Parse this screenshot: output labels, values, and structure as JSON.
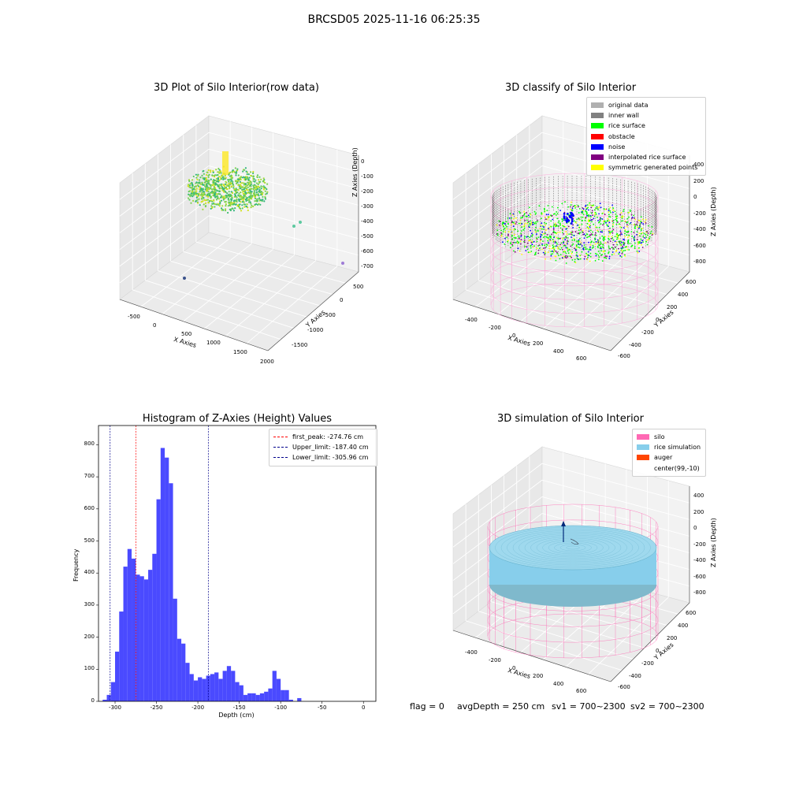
{
  "suptitle": "BRCSD05 2025-11-16 06:25:35",
  "footer": {
    "flag": "flag = 0",
    "avg_depth": "avgDepth = 250 cm",
    "sv1": "sv1 = 700~2300",
    "sv2": "sv2 = 700~2300"
  },
  "panels": {
    "raw": {
      "title": "3D Plot of Silo Interior(row data)",
      "xlabel": "X Axies",
      "ylabel": "Y Axies",
      "zlabel": "Z Axies (Depth)",
      "xticks": [
        "-500",
        "0",
        "500",
        "1000",
        "1500",
        "2000"
      ],
      "yticks": [
        "500",
        "0",
        "-500",
        "-1000",
        "-1500"
      ],
      "zticks": [
        "0",
        "-100",
        "-200",
        "-300",
        "-400",
        "-500",
        "-600",
        "-700"
      ]
    },
    "classify": {
      "title": "3D classify of Silo Interior",
      "xlabel": "X Axies",
      "ylabel": "Y Axies",
      "zlabel": "Z Axies (Depth)",
      "xticks": [
        "-400",
        "-200",
        "0",
        "200",
        "400",
        "600"
      ],
      "yticks": [
        "600",
        "400",
        "200",
        "0",
        "-200",
        "-400",
        "-600"
      ],
      "zticks": [
        "400",
        "200",
        "0",
        "-200",
        "-400",
        "-600",
        "-800"
      ],
      "legend": [
        {
          "label": "original data",
          "color": "#b0b0b0"
        },
        {
          "label": "inner wall",
          "color": "#808080"
        },
        {
          "label": "rice surface",
          "color": "#00ff00"
        },
        {
          "label": "obstacle",
          "color": "#ff0000"
        },
        {
          "label": "noise",
          "color": "#0000ff"
        },
        {
          "label": "interpolated rice surface",
          "color": "#800080"
        },
        {
          "label": "symmetric generated points",
          "color": "#ffff00"
        }
      ]
    },
    "simulation": {
      "title": "3D simulation of Silo Interior",
      "xlabel": "X Axies",
      "ylabel": "Y Axies",
      "zlabel": "Z Axies (Depth)",
      "xticks": [
        "-400",
        "-200",
        "0",
        "200",
        "400",
        "600"
      ],
      "yticks": [
        "600",
        "400",
        "200",
        "0",
        "-200",
        "-400",
        "-600"
      ],
      "zticks": [
        "400",
        "200",
        "0",
        "-200",
        "-400",
        "-600",
        "-800"
      ],
      "legend": [
        {
          "label": "silo",
          "color": "#ff69b4"
        },
        {
          "label": "rice simulation",
          "color": "#87ceeb"
        },
        {
          "label": "auger",
          "color": "#ff4500"
        },
        {
          "label": "center(99,-10)",
          "color": "#ffffff"
        }
      ]
    }
  },
  "chart_data": {
    "type": "bar",
    "title": "Histogram of Z-Axies (Height) Values",
    "xlabel": "Depth (cm)",
    "ylabel": "Frequency",
    "xlim": [
      -320,
      15
    ],
    "ylim": [
      0,
      860
    ],
    "xticks": [
      -300,
      -250,
      -200,
      -150,
      -100,
      -50,
      0
    ],
    "yticks": [
      0,
      100,
      200,
      300,
      400,
      500,
      600,
      700,
      800
    ],
    "bin_width": 5,
    "bin_starts": [
      -315,
      -310,
      -305,
      -300,
      -295,
      -290,
      -285,
      -280,
      -275,
      -270,
      -265,
      -260,
      -255,
      -250,
      -245,
      -240,
      -235,
      -230,
      -225,
      -220,
      -215,
      -210,
      -205,
      -200,
      -195,
      -190,
      -185,
      -180,
      -175,
      -170,
      -165,
      -160,
      -155,
      -150,
      -145,
      -140,
      -135,
      -130,
      -125,
      -120,
      -115,
      -110,
      -105,
      -100,
      -95,
      -90,
      -85,
      -80,
      -75,
      -70,
      -65,
      -60,
      -55,
      -50,
      -45,
      -40,
      -35,
      -30,
      -25,
      -20,
      -15,
      -10,
      -5,
      0
    ],
    "counts": [
      5,
      20,
      60,
      155,
      280,
      420,
      475,
      445,
      395,
      390,
      380,
      410,
      460,
      630,
      790,
      760,
      680,
      320,
      195,
      180,
      120,
      85,
      65,
      75,
      70,
      80,
      85,
      90,
      70,
      95,
      110,
      95,
      60,
      50,
      20,
      25,
      25,
      20,
      25,
      30,
      40,
      95,
      70,
      35,
      35,
      5,
      0,
      10,
      0,
      0,
      0,
      0,
      0,
      0,
      0,
      0,
      0,
      0,
      0,
      0,
      0,
      0,
      0,
      0
    ],
    "bar_color": "#4a4aff",
    "lines": [
      {
        "label": "first_peak: -274.76 cm",
        "x": -274.76,
        "color": "#ff0000"
      },
      {
        "label": "Upper_limit: -187.40 cm",
        "x": -187.4,
        "color": "#00008b"
      },
      {
        "label": "Lower_limit: -305.96 cm",
        "x": -305.96,
        "color": "#00008b"
      }
    ]
  }
}
